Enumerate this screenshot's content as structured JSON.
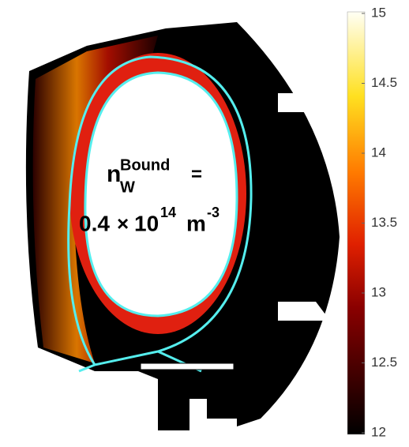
{
  "chart_data": {
    "type": "heatmap",
    "colormap": "hot",
    "clim": [
      12,
      15
    ],
    "cticks": [
      12,
      12.5,
      13,
      13.5,
      14,
      14.5,
      15
    ],
    "annotation": {
      "symbol": "n",
      "subscript": "W",
      "superscript": "Bound",
      "equals": "=",
      "value": "0.4",
      "times": "×",
      "base": "10",
      "exponent": "14",
      "unit": "m",
      "unit_exponent": "-3"
    }
  }
}
